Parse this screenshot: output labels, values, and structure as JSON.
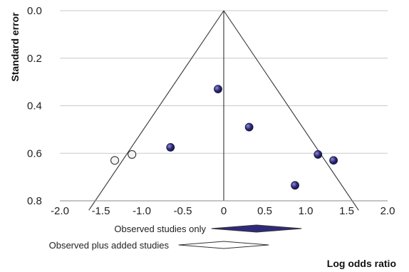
{
  "chart_data": {
    "type": "scatter",
    "title": "",
    "xlabel": "Log odds ratio",
    "ylabel": "Standard error",
    "xlim": [
      -2.0,
      2.0
    ],
    "ylim": [
      0.0,
      0.8
    ],
    "y_reversed": true,
    "grid": "horizontal",
    "x_ticks": [
      "-2.0",
      "-1.5",
      "-1.0",
      "-0.5",
      "0",
      "0.5",
      "1.0",
      "1.5",
      "2.0"
    ],
    "y_ticks": [
      "0.0",
      "0.2",
      "0.4",
      "0.6",
      "0.8"
    ],
    "series": [
      {
        "points": [
          {
            "x": -0.07,
            "y": 0.33
          },
          {
            "x": 0.31,
            "y": 0.49
          },
          {
            "x": -0.65,
            "y": 0.575
          },
          {
            "x": 1.15,
            "y": 0.605
          },
          {
            "x": 1.34,
            "y": 0.63
          },
          {
            "x": 0.87,
            "y": 0.735
          }
        ],
        "color": "#2e2a7a",
        "marker": "filled"
      },
      {
        "points": [
          {
            "x": -1.33,
            "y": 0.63
          },
          {
            "x": -1.12,
            "y": 0.605
          }
        ],
        "color": "#ffffff",
        "marker": "open"
      }
    ],
    "funnel": {
      "apex_x": 0.0,
      "apex_y": 0.0,
      "left_slope": -1.96,
      "right_slope": 1.96
    },
    "center_line_x": 0.0,
    "summary_estimates": [
      {
        "label": "Observed studies only",
        "low": -0.15,
        "center": 0.4,
        "high": 0.95,
        "fill": "#2e2a7a"
      },
      {
        "label": "Observed plus added studies",
        "low": -0.55,
        "center": 0.0,
        "high": 0.55,
        "fill": "#ffffff"
      }
    ]
  }
}
